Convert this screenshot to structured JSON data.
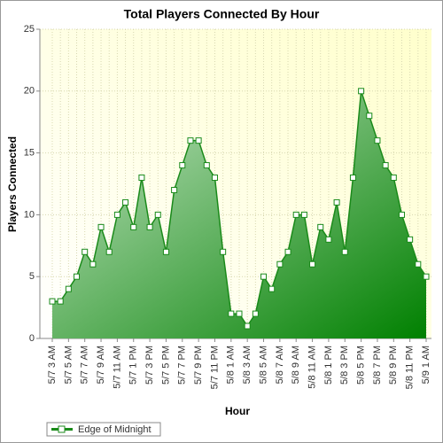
{
  "chart_data": {
    "type": "area",
    "title": "Total Players Connected By Hour",
    "x_label": "Hour",
    "y_label": "Players Connected",
    "categories": [
      "5/7 3 AM",
      null,
      "5/7 5 AM",
      null,
      "5/7 7 AM",
      null,
      "5/7 9 AM",
      null,
      "5/7 11 AM",
      null,
      "5/7 1 PM",
      null,
      "5/7 3 PM",
      null,
      "5/7 5 PM",
      null,
      "5/7 7 PM",
      null,
      "5/7 9 PM",
      null,
      "5/7 11 PM",
      null,
      "5/8 1 AM",
      null,
      "5/8 3 AM",
      null,
      "5/8 5 AM",
      null,
      "5/8 7 AM",
      null,
      "5/8 9 AM",
      null,
      "5/8 11 AM",
      null,
      "5/8 1 PM",
      null,
      "5/8 3 PM",
      null,
      "5/8 5 PM",
      null,
      "5/8 7 PM",
      null,
      "5/8 9 PM",
      null,
      "5/8 11 PM",
      null,
      "5/9 1 AM"
    ],
    "series": [
      {
        "name": "Edge of Midnight",
        "color": "#1a8a1a",
        "values": [
          3,
          3,
          4,
          5,
          7,
          6,
          9,
          7,
          10,
          11,
          9,
          13,
          9,
          10,
          7,
          12,
          14,
          16,
          16,
          14,
          13,
          7,
          2,
          2,
          1,
          2,
          5,
          4,
          6,
          7,
          10,
          10,
          6,
          9,
          8,
          11,
          7,
          13,
          20,
          18,
          16,
          14,
          13,
          10,
          8,
          6,
          5
        ]
      }
    ],
    "ylim": [
      0,
      25
    ],
    "yticks": [
      0,
      5,
      10,
      15,
      20,
      25
    ],
    "grid": true,
    "legend": "bottom-left"
  }
}
